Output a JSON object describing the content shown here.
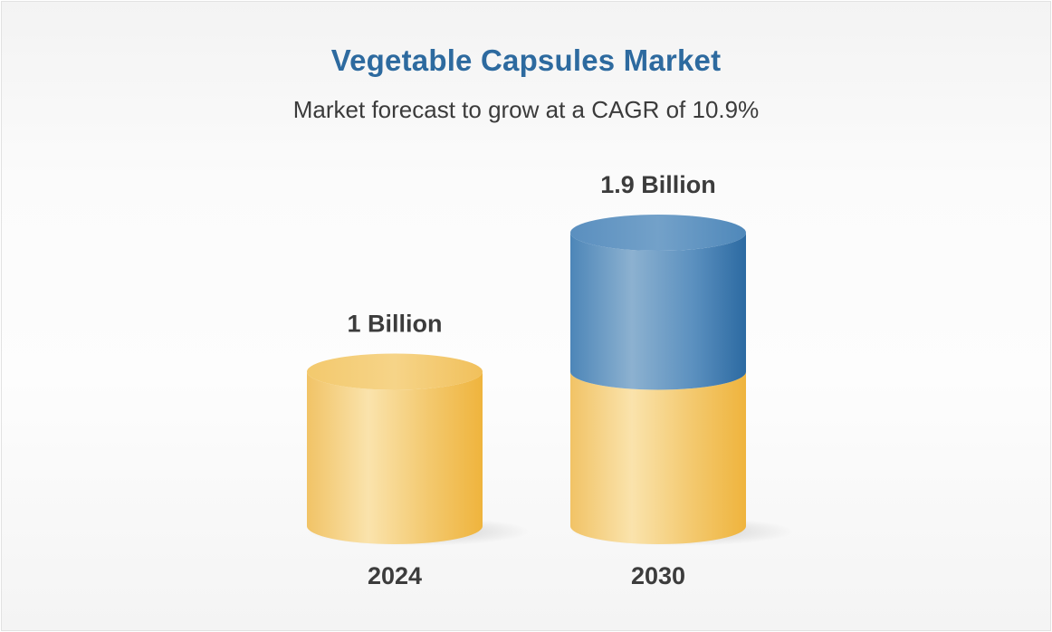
{
  "header": {
    "title": "Vegetable Capsules Market",
    "subtitle": "Market forecast to grow at a CAGR of 10.9%"
  },
  "colors": {
    "title": "#2d6a9f",
    "gold": "#f2c15c",
    "blue": "#4a86b8",
    "text": "#3c3c3c"
  },
  "chart_data": {
    "type": "bar",
    "style": "3d-cylinder",
    "categories": [
      "2024",
      "2030"
    ],
    "values": [
      1.0,
      1.9
    ],
    "value_labels": [
      "1 Billion",
      "1.9 Billion"
    ],
    "unit": "Billion",
    "title": "Vegetable Capsules Market",
    "subtitle": "Market forecast to grow at a CAGR of 10.9%",
    "xlabel": "",
    "ylabel": "",
    "ylim": [
      0,
      1.9
    ],
    "segments_2030": [
      {
        "part": "base",
        "value": 1.0,
        "color": "gold"
      },
      {
        "part": "growth",
        "value": 0.9,
        "color": "blue"
      }
    ],
    "grid": false,
    "legend": "none"
  }
}
